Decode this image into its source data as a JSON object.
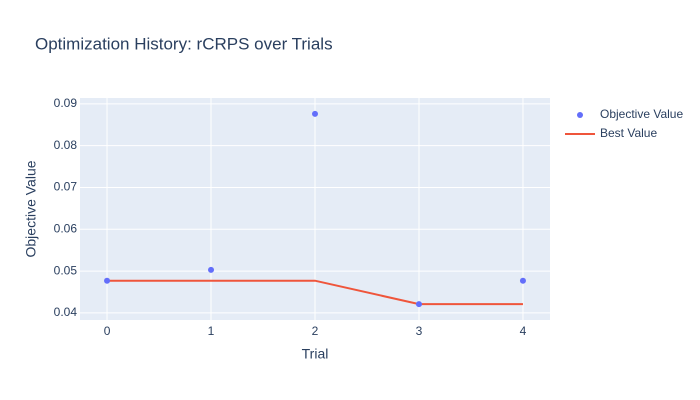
{
  "chart_data": {
    "type": "scatter",
    "title": "Optimization History: rCRPS over Trials",
    "x_label": "Trial",
    "y_label": "Objective Value",
    "x": [
      0,
      1,
      2,
      3,
      4
    ],
    "series": [
      {
        "name": "Objective Value",
        "mode": "markers",
        "color": "#636efa",
        "values": [
          0.0477,
          0.0503,
          0.0876,
          0.0421,
          0.0477
        ]
      },
      {
        "name": "Best Value",
        "mode": "lines",
        "color": "#ef553b",
        "values": [
          0.0477,
          0.0477,
          0.0477,
          0.0421,
          0.0421
        ]
      }
    ],
    "xlim": [
      -0.26,
      4.26
    ],
    "xticks": [
      0,
      1,
      2,
      3,
      4
    ],
    "ylim": [
      0.0383,
      0.0914
    ],
    "yticks": [
      0.04,
      0.05,
      0.06,
      0.07,
      0.08,
      0.09
    ],
    "grid": true,
    "legend": "right"
  }
}
